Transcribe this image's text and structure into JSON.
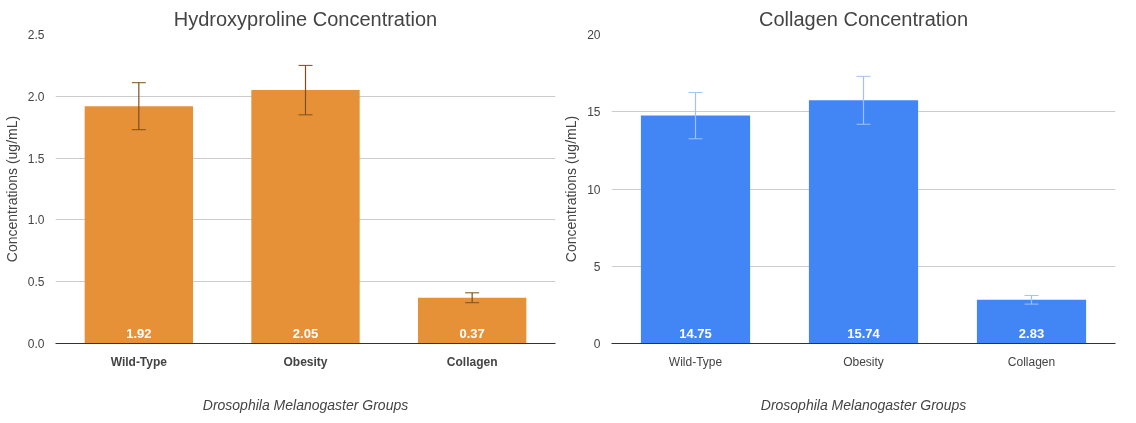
{
  "chart_data": [
    {
      "type": "bar",
      "title": "Hydroxyproline Concentration",
      "xlabel": "Drosophila Melanogaster Groups",
      "ylabel": "Concentrations (ug/mL)",
      "categories": [
        "Wild-Type",
        "Obesity",
        "Collagen"
      ],
      "series": [
        {
          "color": "#e69138",
          "values": [
            1.92,
            2.05,
            0.37
          ],
          "errors": [
            0.19,
            0.2,
            0.04
          ]
        }
      ],
      "ylim": [
        0,
        2.5
      ],
      "yticks": [
        {
          "value": 0,
          "label": "0.0"
        },
        {
          "value": 0.5,
          "label": "0.5"
        },
        {
          "value": 1,
          "label": "1.0"
        },
        {
          "value": 1.5,
          "label": "1.5"
        },
        {
          "value": 2,
          "label": "2.0"
        },
        {
          "value": 2.5,
          "label": "2.5"
        }
      ],
      "grid": "y",
      "data_labels": true
    },
    {
      "type": "bar",
      "title": "Collagen Concentration",
      "xlabel": "Drosophila Melanogaster Groups",
      "ylabel": "Concentrations (ug/mL)",
      "categories": [
        "Wild-Type",
        "Obesity",
        "Collagen"
      ],
      "series": [
        {
          "color": "#4285f4",
          "values": [
            14.75,
            15.74,
            2.83
          ],
          "errors": [
            1.5,
            1.55,
            0.28
          ]
        }
      ],
      "ylim": [
        0,
        20
      ],
      "yticks": [
        0,
        5,
        10,
        15,
        20
      ],
      "grid": "y",
      "data_labels": true
    }
  ]
}
